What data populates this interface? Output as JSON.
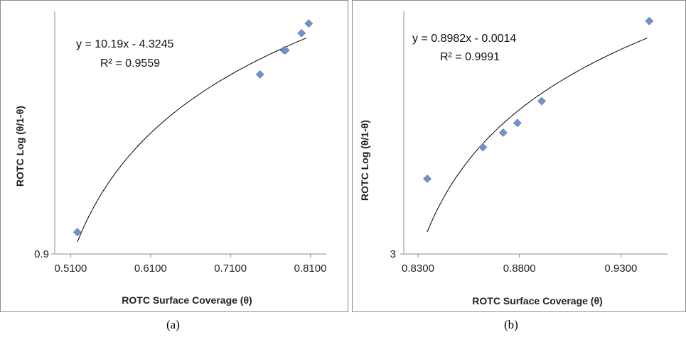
{
  "chart_data": [
    {
      "type": "scatter",
      "caption": "(a)",
      "xlabel": "ROTC Surface Coverage (θ)",
      "ylabel": "ROTC Log (θ/1-θ)",
      "xlim": [
        0.49,
        0.83
      ],
      "xticks": [
        0.51,
        0.61,
        0.71,
        0.81
      ],
      "xtick_labels": [
        "0.5100",
        "0.6100",
        "0.7100",
        "0.8100"
      ],
      "ytick_labels": [
        "0.9"
      ],
      "equation": "y = 10.19x - 4.3245",
      "r2": "R² = 0.9559",
      "marker_color": "#6f93c6",
      "points": [
        {
          "x": 0.5183,
          "y": 0.09
        },
        {
          "x": 0.747,
          "y": 0.74
        },
        {
          "x": 0.777,
          "y": 0.84
        },
        {
          "x": 0.779,
          "y": 0.84
        },
        {
          "x": 0.799,
          "y": 0.91
        },
        {
          "x": 0.808,
          "y": 0.95
        }
      ],
      "trendline": {
        "kind": "log",
        "x_from": 0.5183,
        "x_to": 0.805,
        "y_from": 0.05,
        "y_to": 0.89
      }
    },
    {
      "type": "scatter",
      "caption": "(b)",
      "xlabel": "ROTC Surface Coverage (θ)",
      "ylabel": "ROTC Log (θ/1-θ)",
      "xlim": [
        0.823,
        0.953
      ],
      "xticks": [
        0.83,
        0.88,
        0.93
      ],
      "xtick_labels": [
        "0.8300",
        "0.8800",
        "0.9300"
      ],
      "ytick_labels": [
        "3"
      ],
      "equation": "y = 0.8982x - 0.0014",
      "r2": "R² = 0.9991",
      "marker_color": "#6f93c6",
      "points": [
        {
          "x": 0.8346,
          "y": 0.31
        },
        {
          "x": 0.862,
          "y": 0.44
        },
        {
          "x": 0.872,
          "y": 0.5
        },
        {
          "x": 0.879,
          "y": 0.54
        },
        {
          "x": 0.891,
          "y": 0.63
        },
        {
          "x": 0.944,
          "y": 0.96
        }
      ],
      "trendline": {
        "kind": "log",
        "x_from": 0.8345,
        "x_to": 0.943,
        "y_from": 0.09,
        "y_to": 0.89
      }
    }
  ]
}
